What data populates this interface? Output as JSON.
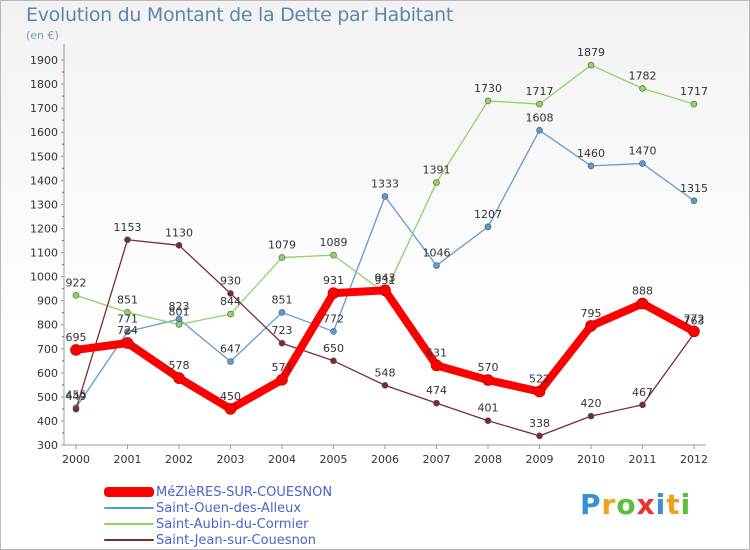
{
  "chart_data": {
    "type": "line",
    "title": "Evolution du Montant de la Dette par Habitant",
    "subtitle": "(en €)",
    "xlabel": "",
    "ylabel": "",
    "x": [
      "2000",
      "2001",
      "2002",
      "2003",
      "2004",
      "2005",
      "2006",
      "2007",
      "2008",
      "2009",
      "2010",
      "2011",
      "2012"
    ],
    "yticks": [
      300,
      400,
      500,
      600,
      700,
      800,
      900,
      1000,
      1100,
      1200,
      1300,
      1400,
      1500,
      1600,
      1700,
      1800,
      1900
    ],
    "ylim": [
      300,
      1950
    ],
    "grid": false,
    "legend_position": "bottom-left",
    "series": [
      {
        "name": "MéZIèRES-SUR-COUESNON",
        "color": "#ff0000",
        "values": [
          695,
          724,
          578,
          450,
          571,
          931,
          943,
          631,
          570,
          522,
          795,
          888,
          772
        ],
        "labels": [
          "695",
          "724",
          "578",
          "450",
          "571",
          "931",
          "943",
          "631",
          "570",
          "522",
          "795",
          "888",
          "772"
        ]
      },
      {
        "name": "Saint-Ouen-des-Alleux",
        "color": "#5b9bd5",
        "values": [
          455,
          771,
          823,
          647,
          851,
          772,
          1333,
          1046,
          1207,
          1608,
          1460,
          1470,
          1315
        ],
        "labels": [
          "455",
          "771",
          "823",
          "647",
          "851",
          "772",
          "1333",
          "1046",
          "1207",
          "1608",
          "1460",
          "1470",
          "1315"
        ]
      },
      {
        "name": "Saint-Aubin-du-Cormier",
        "color": "#8ed461",
        "values": [
          922,
          851,
          801,
          844,
          1079,
          1089,
          931,
          1391,
          1730,
          1717,
          1879,
          1782,
          1717
        ],
        "labels": [
          "922",
          "851",
          "801",
          "844",
          "1079",
          "1089",
          "931",
          "1391",
          "1730",
          "1717",
          "1879",
          "1782",
          "1717"
        ]
      },
      {
        "name": "Saint-Jean-sur-Couesnon",
        "color": "#7b2c2c",
        "values": [
          449,
          1153,
          1130,
          930,
          723,
          650,
          548,
          474,
          401,
          338,
          420,
          467,
          763
        ],
        "labels": [
          "449",
          "1153",
          "1130",
          "930",
          "723",
          "650",
          "548",
          "474",
          "401",
          "338",
          "420",
          "467",
          "763"
        ]
      }
    ]
  },
  "brand": {
    "letters": [
      "P",
      "r",
      "o",
      "x",
      "i",
      "t",
      "i"
    ],
    "colors": [
      "#3b8fd6",
      "#f2a020",
      "#5bbf3c",
      "#e63232",
      "#3b8fd6",
      "#f2a020",
      "#5bbf3c"
    ]
  }
}
